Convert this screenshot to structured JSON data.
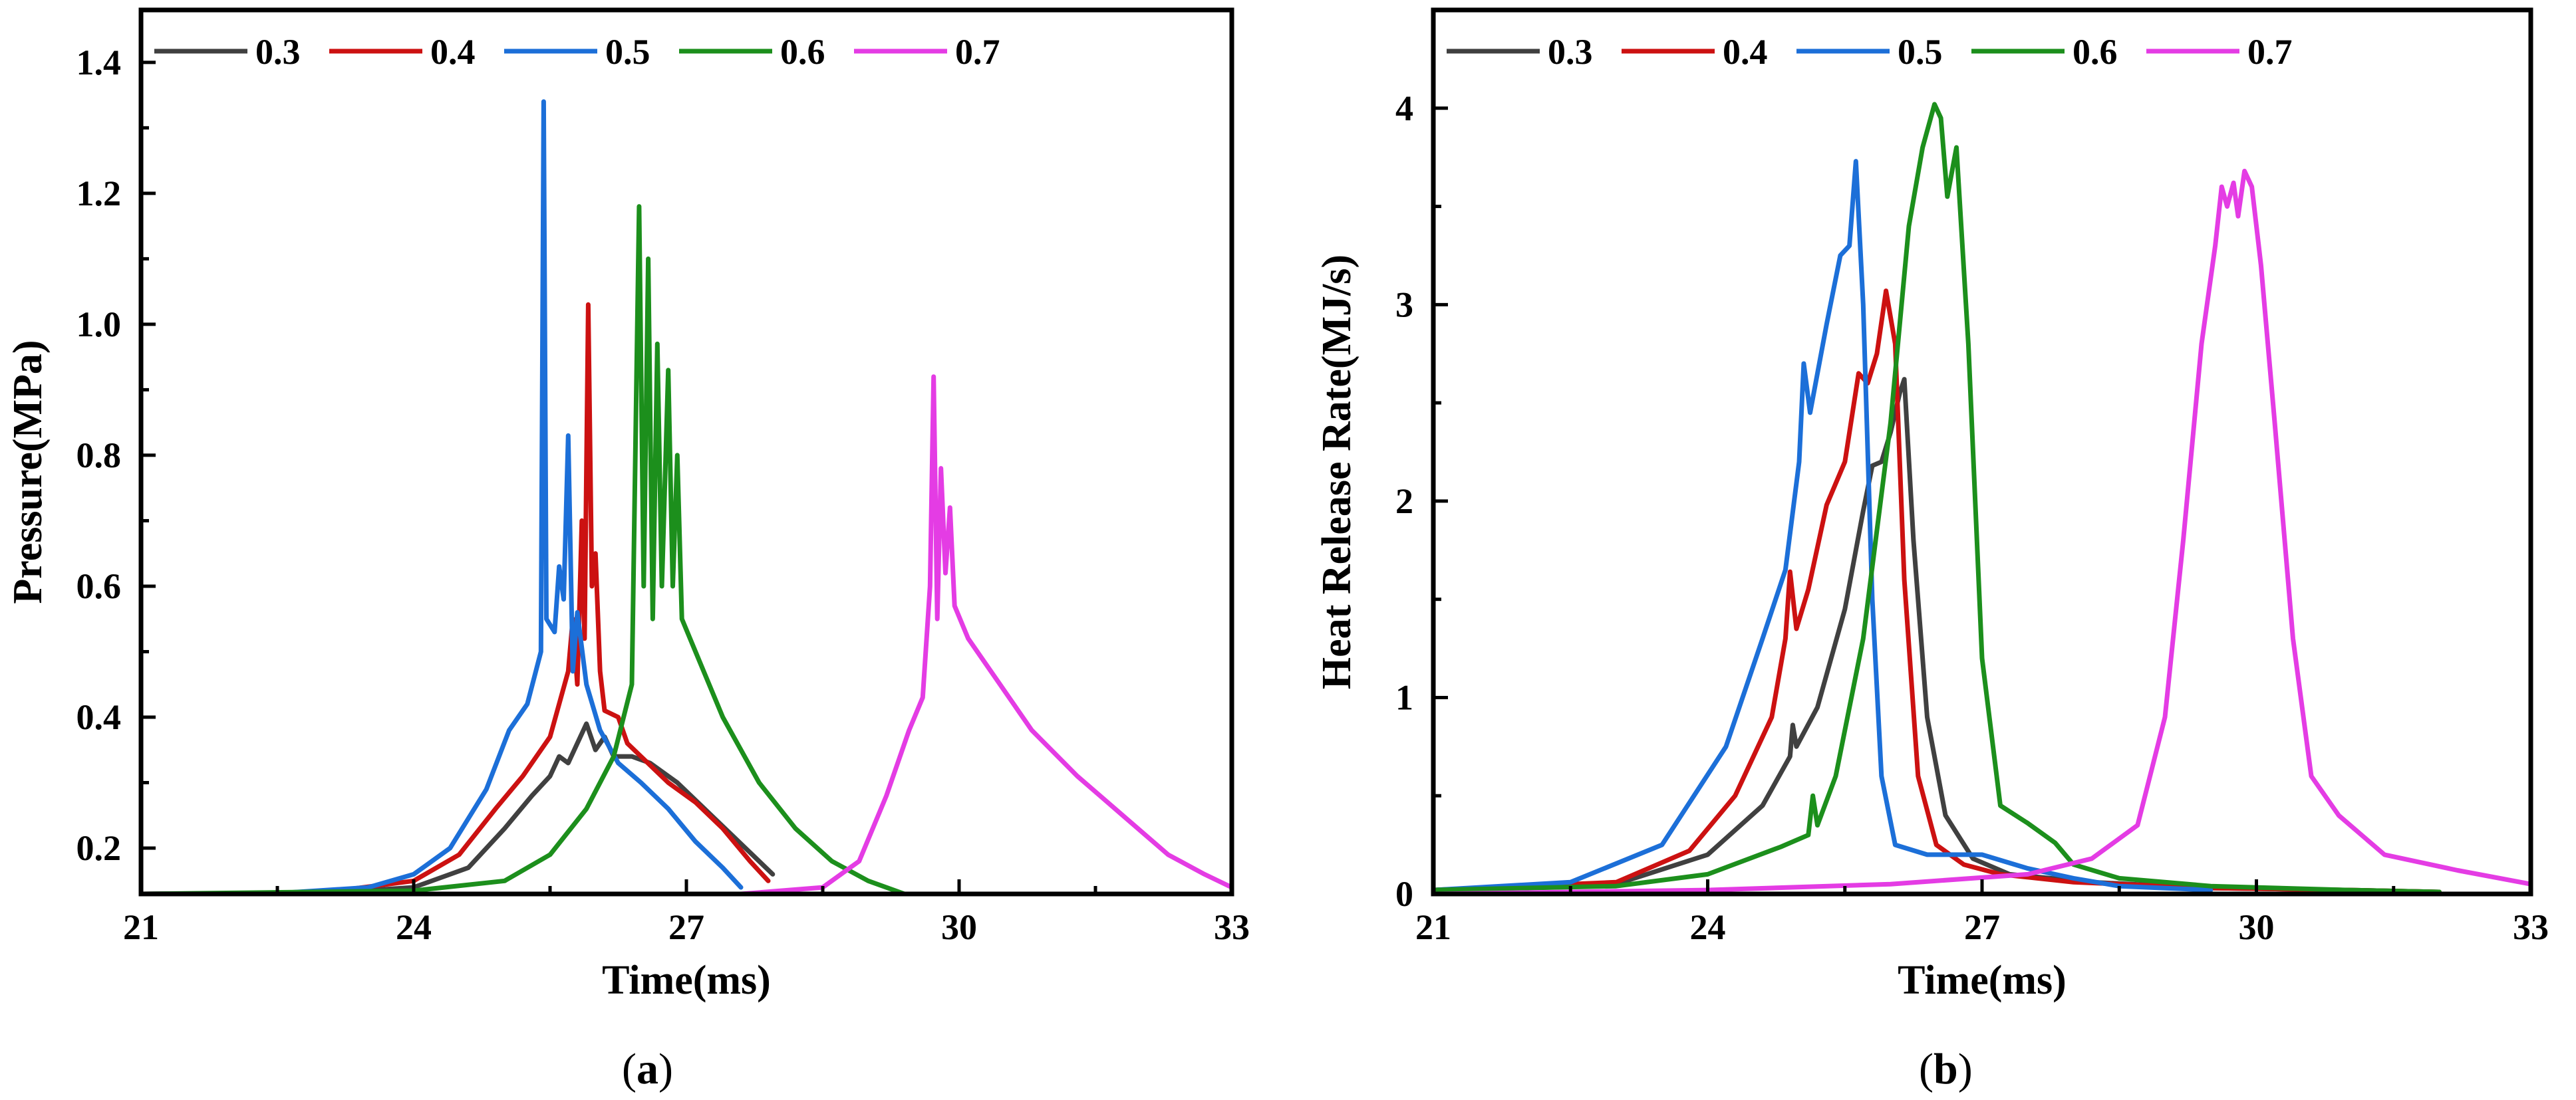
{
  "chart_data": [
    {
      "panel": "(a)",
      "panel_letter": "a",
      "type": "line",
      "xlabel": "Time(ms)",
      "ylabel": "Pressure(MPa)",
      "xlim": [
        21,
        33
      ],
      "ylim": [
        0.13,
        1.48
      ],
      "xticks": [
        21,
        24,
        27,
        30,
        33
      ],
      "yticks": [
        0.2,
        0.4,
        0.6,
        0.8,
        1.0,
        1.2,
        1.4
      ],
      "ytick_labels": [
        "0.2",
        "0.4",
        "0.6",
        "0.8",
        "1.0",
        "1.2",
        "1.4"
      ],
      "legend_position": "top",
      "series": [
        {
          "name": "0.3",
          "color": "#404040",
          "points": [
            [
              21,
              0.13
            ],
            [
              23,
              0.131
            ],
            [
              24,
              0.14
            ],
            [
              24.6,
              0.17
            ],
            [
              25.0,
              0.23
            ],
            [
              25.3,
              0.28
            ],
            [
              25.5,
              0.31
            ],
            [
              25.6,
              0.34
            ],
            [
              25.7,
              0.33
            ],
            [
              25.8,
              0.36
            ],
            [
              25.9,
              0.39
            ],
            [
              26.0,
              0.35
            ],
            [
              26.1,
              0.37
            ],
            [
              26.2,
              0.34
            ],
            [
              26.4,
              0.34
            ],
            [
              26.6,
              0.33
            ],
            [
              26.9,
              0.3
            ],
            [
              27.2,
              0.26
            ],
            [
              27.5,
              0.22
            ],
            [
              27.8,
              0.18
            ],
            [
              27.95,
              0.16
            ]
          ]
        },
        {
          "name": "0.4",
          "color": "#cc1111",
          "points": [
            [
              21,
              0.13
            ],
            [
              23,
              0.132
            ],
            [
              24,
              0.15
            ],
            [
              24.5,
              0.19
            ],
            [
              24.9,
              0.26
            ],
            [
              25.2,
              0.31
            ],
            [
              25.5,
              0.37
            ],
            [
              25.7,
              0.47
            ],
            [
              25.75,
              0.55
            ],
            [
              25.8,
              0.45
            ],
            [
              25.85,
              0.7
            ],
            [
              25.88,
              0.52
            ],
            [
              25.92,
              1.03
            ],
            [
              25.96,
              0.6
            ],
            [
              26.0,
              0.65
            ],
            [
              26.05,
              0.47
            ],
            [
              26.1,
              0.41
            ],
            [
              26.25,
              0.4
            ],
            [
              26.35,
              0.36
            ],
            [
              26.5,
              0.34
            ],
            [
              26.8,
              0.3
            ],
            [
              27.1,
              0.27
            ],
            [
              27.4,
              0.23
            ],
            [
              27.7,
              0.18
            ],
            [
              27.9,
              0.15
            ]
          ]
        },
        {
          "name": "0.5",
          "color": "#1c6fd8",
          "points": [
            [
              21,
              0.13
            ],
            [
              22.5,
              0.131
            ],
            [
              23.5,
              0.14
            ],
            [
              24,
              0.16
            ],
            [
              24.4,
              0.2
            ],
            [
              24.8,
              0.29
            ],
            [
              25.05,
              0.38
            ],
            [
              25.25,
              0.42
            ],
            [
              25.4,
              0.5
            ],
            [
              25.43,
              1.34
            ],
            [
              25.46,
              0.55
            ],
            [
              25.55,
              0.53
            ],
            [
              25.6,
              0.63
            ],
            [
              25.65,
              0.58
            ],
            [
              25.7,
              0.83
            ],
            [
              25.75,
              0.47
            ],
            [
              25.8,
              0.56
            ],
            [
              25.9,
              0.45
            ],
            [
              26.05,
              0.38
            ],
            [
              26.25,
              0.33
            ],
            [
              26.5,
              0.3
            ],
            [
              26.8,
              0.26
            ],
            [
              27.1,
              0.21
            ],
            [
              27.4,
              0.17
            ],
            [
              27.6,
              0.14
            ]
          ]
        },
        {
          "name": "0.6",
          "color": "#1c8f1c",
          "points": [
            [
              21,
              0.13
            ],
            [
              24,
              0.135
            ],
            [
              25,
              0.15
            ],
            [
              25.5,
              0.19
            ],
            [
              25.9,
              0.26
            ],
            [
              26.2,
              0.34
            ],
            [
              26.4,
              0.45
            ],
            [
              26.48,
              1.18
            ],
            [
              26.53,
              0.6
            ],
            [
              26.58,
              1.1
            ],
            [
              26.63,
              0.55
            ],
            [
              26.68,
              0.97
            ],
            [
              26.73,
              0.6
            ],
            [
              26.8,
              0.93
            ],
            [
              26.85,
              0.6
            ],
            [
              26.9,
              0.8
            ],
            [
              26.95,
              0.55
            ],
            [
              27.1,
              0.5
            ],
            [
              27.4,
              0.4
            ],
            [
              27.8,
              0.3
            ],
            [
              28.2,
              0.23
            ],
            [
              28.6,
              0.18
            ],
            [
              29.0,
              0.15
            ],
            [
              29.4,
              0.13
            ]
          ]
        },
        {
          "name": "0.7",
          "color": "#e43ce4",
          "points": [
            [
              27.6,
              0.13
            ],
            [
              28.5,
              0.14
            ],
            [
              28.9,
              0.18
            ],
            [
              29.2,
              0.28
            ],
            [
              29.45,
              0.38
            ],
            [
              29.6,
              0.43
            ],
            [
              29.68,
              0.6
            ],
            [
              29.72,
              0.92
            ],
            [
              29.76,
              0.55
            ],
            [
              29.8,
              0.78
            ],
            [
              29.85,
              0.62
            ],
            [
              29.9,
              0.72
            ],
            [
              29.95,
              0.57
            ],
            [
              30.1,
              0.52
            ],
            [
              30.4,
              0.46
            ],
            [
              30.8,
              0.38
            ],
            [
              31.3,
              0.31
            ],
            [
              31.8,
              0.25
            ],
            [
              32.3,
              0.19
            ],
            [
              32.7,
              0.16
            ],
            [
              33.0,
              0.14
            ]
          ]
        }
      ]
    },
    {
      "panel": "(b)",
      "panel_letter": "b",
      "type": "line",
      "xlabel": "Time(ms)",
      "ylabel": "Heat Release Rate(MJ/s)",
      "xlim": [
        21,
        33
      ],
      "ylim": [
        0,
        4.5
      ],
      "xticks": [
        21,
        24,
        27,
        30,
        33
      ],
      "yticks": [
        0,
        1,
        2,
        3,
        4
      ],
      "ytick_labels": [
        "0",
        "1",
        "2",
        "3",
        "4"
      ],
      "legend_position": "top",
      "series": [
        {
          "name": "0.3",
          "color": "#404040",
          "points": [
            [
              21,
              0.02
            ],
            [
              23,
              0.05
            ],
            [
              24,
              0.2
            ],
            [
              24.6,
              0.45
            ],
            [
              24.9,
              0.7
            ],
            [
              24.93,
              0.86
            ],
            [
              24.97,
              0.75
            ],
            [
              25.2,
              0.95
            ],
            [
              25.5,
              1.45
            ],
            [
              25.7,
              1.95
            ],
            [
              25.8,
              2.18
            ],
            [
              25.9,
              2.2
            ],
            [
              26.0,
              2.35
            ],
            [
              26.1,
              2.55
            ],
            [
              26.15,
              2.62
            ],
            [
              26.25,
              1.8
            ],
            [
              26.4,
              0.9
            ],
            [
              26.6,
              0.4
            ],
            [
              26.9,
              0.18
            ],
            [
              27.3,
              0.1
            ],
            [
              28.2,
              0.06
            ],
            [
              29.5,
              0.03
            ],
            [
              31.0,
              0.02
            ],
            [
              32.0,
              0.01
            ]
          ]
        },
        {
          "name": "0.4",
          "color": "#cc1111",
          "points": [
            [
              21,
              0.02
            ],
            [
              23,
              0.06
            ],
            [
              23.8,
              0.22
            ],
            [
              24.3,
              0.5
            ],
            [
              24.7,
              0.9
            ],
            [
              24.85,
              1.3
            ],
            [
              24.9,
              1.64
            ],
            [
              24.97,
              1.35
            ],
            [
              25.1,
              1.55
            ],
            [
              25.3,
              1.98
            ],
            [
              25.5,
              2.2
            ],
            [
              25.65,
              2.65
            ],
            [
              25.75,
              2.6
            ],
            [
              25.85,
              2.75
            ],
            [
              25.95,
              3.07
            ],
            [
              26.05,
              2.8
            ],
            [
              26.15,
              1.6
            ],
            [
              26.3,
              0.6
            ],
            [
              26.5,
              0.25
            ],
            [
              26.8,
              0.15
            ],
            [
              27.2,
              0.1
            ],
            [
              28.0,
              0.06
            ],
            [
              29.5,
              0.03
            ],
            [
              31.0,
              0.02
            ],
            [
              32.0,
              0.01
            ]
          ]
        },
        {
          "name": "0.5",
          "color": "#1c6fd8",
          "points": [
            [
              21,
              0.02
            ],
            [
              22.5,
              0.06
            ],
            [
              23.5,
              0.25
            ],
            [
              24.2,
              0.75
            ],
            [
              24.6,
              1.3
            ],
            [
              24.85,
              1.65
            ],
            [
              25.0,
              2.2
            ],
            [
              25.05,
              2.7
            ],
            [
              25.12,
              2.45
            ],
            [
              25.3,
              2.9
            ],
            [
              25.45,
              3.25
            ],
            [
              25.55,
              3.3
            ],
            [
              25.62,
              3.73
            ],
            [
              25.7,
              3.0
            ],
            [
              25.8,
              1.5
            ],
            [
              25.9,
              0.6
            ],
            [
              26.05,
              0.25
            ],
            [
              26.4,
              0.2
            ],
            [
              27.0,
              0.2
            ],
            [
              27.5,
              0.13
            ],
            [
              28.0,
              0.08
            ],
            [
              28.5,
              0.04
            ],
            [
              29.5,
              0.02
            ]
          ]
        },
        {
          "name": "0.6",
          "color": "#1c8f1c",
          "points": [
            [
              21,
              0.02
            ],
            [
              23,
              0.04
            ],
            [
              24,
              0.1
            ],
            [
              24.8,
              0.24
            ],
            [
              25.1,
              0.3
            ],
            [
              25.15,
              0.5
            ],
            [
              25.2,
              0.35
            ],
            [
              25.4,
              0.6
            ],
            [
              25.7,
              1.3
            ],
            [
              26.0,
              2.4
            ],
            [
              26.2,
              3.4
            ],
            [
              26.35,
              3.8
            ],
            [
              26.48,
              4.02
            ],
            [
              26.55,
              3.95
            ],
            [
              26.62,
              3.55
            ],
            [
              26.72,
              3.8
            ],
            [
              26.85,
              2.8
            ],
            [
              27.0,
              1.2
            ],
            [
              27.2,
              0.45
            ],
            [
              27.5,
              0.36
            ],
            [
              27.8,
              0.26
            ],
            [
              28.0,
              0.15
            ],
            [
              28.5,
              0.08
            ],
            [
              29.5,
              0.04
            ],
            [
              31.0,
              0.02
            ],
            [
              32.0,
              0.01
            ]
          ]
        },
        {
          "name": "0.7",
          "color": "#e43ce4",
          "points": [
            [
              21,
              0.0
            ],
            [
              24,
              0.02
            ],
            [
              26,
              0.05
            ],
            [
              27.5,
              0.1
            ],
            [
              28.2,
              0.18
            ],
            [
              28.7,
              0.35
            ],
            [
              29.0,
              0.9
            ],
            [
              29.2,
              1.8
            ],
            [
              29.4,
              2.8
            ],
            [
              29.55,
              3.3
            ],
            [
              29.62,
              3.6
            ],
            [
              29.68,
              3.5
            ],
            [
              29.75,
              3.62
            ],
            [
              29.8,
              3.45
            ],
            [
              29.87,
              3.68
            ],
            [
              29.95,
              3.6
            ],
            [
              30.05,
              3.2
            ],
            [
              30.2,
              2.4
            ],
            [
              30.4,
              1.3
            ],
            [
              30.6,
              0.6
            ],
            [
              30.9,
              0.4
            ],
            [
              31.4,
              0.2
            ],
            [
              32.2,
              0.12
            ],
            [
              33.0,
              0.05
            ]
          ]
        }
      ]
    }
  ]
}
